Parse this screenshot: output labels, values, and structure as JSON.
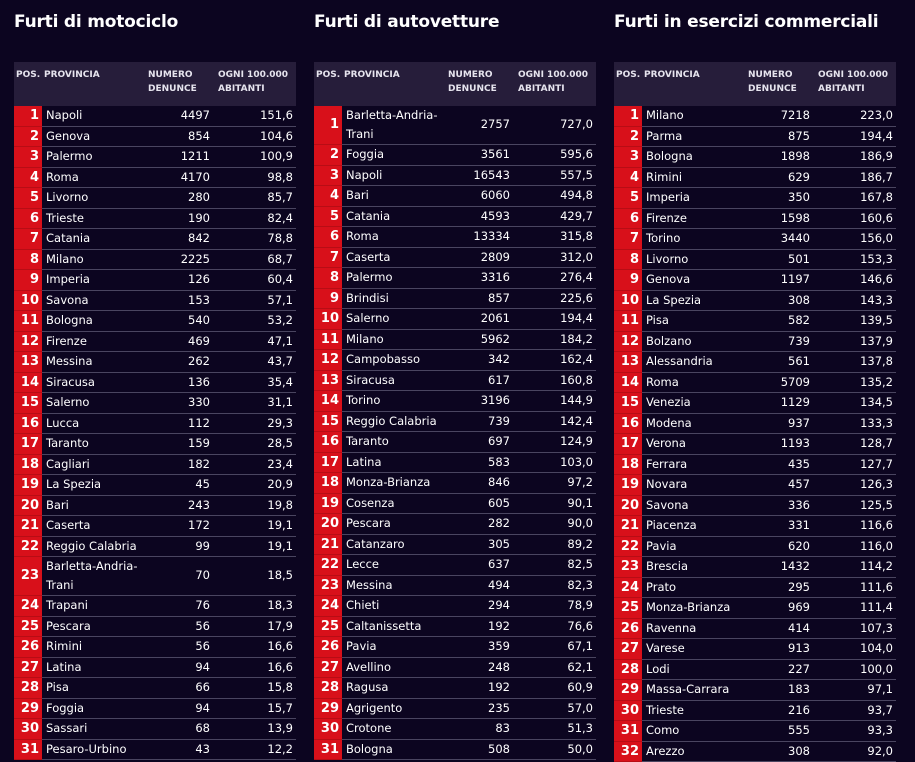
{
  "headers": {
    "pos": "POS.",
    "provincia": "PROVINCIA",
    "numero": "NUMERO DENUNCE",
    "ogni": "OGNI 100.000 ABITANTI"
  },
  "tables": [
    {
      "title": "Furti di motociclo",
      "rows": [
        [
          "1",
          "Napoli",
          "4497",
          "151,6"
        ],
        [
          "2",
          "Genova",
          "854",
          "104,6"
        ],
        [
          "3",
          "Palermo",
          "1211",
          "100,9"
        ],
        [
          "4",
          "Roma",
          "4170",
          "98,8"
        ],
        [
          "5",
          "Livorno",
          "280",
          "85,7"
        ],
        [
          "6",
          "Trieste",
          "190",
          "82,4"
        ],
        [
          "7",
          "Catania",
          "842",
          "78,8"
        ],
        [
          "8",
          "Milano",
          "2225",
          "68,7"
        ],
        [
          "9",
          "Imperia",
          "126",
          "60,4"
        ],
        [
          "10",
          "Savona",
          "153",
          "57,1"
        ],
        [
          "11",
          "Bologna",
          "540",
          "53,2"
        ],
        [
          "12",
          "Firenze",
          "469",
          "47,1"
        ],
        [
          "13",
          "Messina",
          "262",
          "43,7"
        ],
        [
          "14",
          "Siracusa",
          "136",
          "35,4"
        ],
        [
          "15",
          "Salerno",
          "330",
          "31,1"
        ],
        [
          "16",
          "Lucca",
          "112",
          "29,3"
        ],
        [
          "17",
          "Taranto",
          "159",
          "28,5"
        ],
        [
          "18",
          "Cagliari",
          "182",
          "23,4"
        ],
        [
          "19",
          "La Spezia",
          "45",
          "20,9"
        ],
        [
          "20",
          "Bari",
          "243",
          "19,8"
        ],
        [
          "21",
          "Caserta",
          "172",
          "19,1"
        ],
        [
          "22",
          "Reggio Calabria",
          "99",
          "19,1"
        ],
        [
          "23",
          "Barletta-Andria-Trani",
          "70",
          "18,5"
        ],
        [
          "24",
          "Trapani",
          "76",
          "18,3"
        ],
        [
          "25",
          "Pescara",
          "56",
          "17,9"
        ],
        [
          "26",
          "Rimini",
          "56",
          "16,6"
        ],
        [
          "27",
          "Latina",
          "94",
          "16,6"
        ],
        [
          "28",
          "Pisa",
          "66",
          "15,8"
        ],
        [
          "29",
          "Foggia",
          "94",
          "15,7"
        ],
        [
          "30",
          "Sassari",
          "68",
          "13,9"
        ],
        [
          "31",
          "Pesaro-Urbino",
          "43",
          "12,2"
        ]
      ]
    },
    {
      "title": "Furti di autovetture",
      "rows": [
        [
          "1",
          "Barletta-Andria-Trani",
          "2757",
          "727,0"
        ],
        [
          "2",
          "Foggia",
          "3561",
          "595,6"
        ],
        [
          "3",
          "Napoli",
          "16543",
          "557,5"
        ],
        [
          "4",
          "Bari",
          "6060",
          "494,8"
        ],
        [
          "5",
          "Catania",
          "4593",
          "429,7"
        ],
        [
          "6",
          "Roma",
          "13334",
          "315,8"
        ],
        [
          "7",
          "Caserta",
          "2809",
          "312,0"
        ],
        [
          "8",
          "Palermo",
          "3316",
          "276,4"
        ],
        [
          "9",
          "Brindisi",
          "857",
          "225,6"
        ],
        [
          "10",
          "Salerno",
          "2061",
          "194,4"
        ],
        [
          "11",
          "Milano",
          "5962",
          "184,2"
        ],
        [
          "12",
          "Campobasso",
          "342",
          "162,4"
        ],
        [
          "13",
          "Siracusa",
          "617",
          "160,8"
        ],
        [
          "14",
          "Torino",
          "3196",
          "144,9"
        ],
        [
          "15",
          "Reggio Calabria",
          "739",
          "142,4"
        ],
        [
          "16",
          "Taranto",
          "697",
          "124,9"
        ],
        [
          "17",
          "Latina",
          "583",
          "103,0"
        ],
        [
          "18",
          "Monza-Brianza",
          "846",
          "97,2"
        ],
        [
          "19",
          "Cosenza",
          "605",
          "90,1"
        ],
        [
          "20",
          "Pescara",
          "282",
          "90,0"
        ],
        [
          "21",
          "Catanzaro",
          "305",
          "89,2"
        ],
        [
          "22",
          "Lecce",
          "637",
          "82,5"
        ],
        [
          "23",
          "Messina",
          "494",
          "82,3"
        ],
        [
          "24",
          "Chieti",
          "294",
          "78,9"
        ],
        [
          "25",
          "Caltanissetta",
          "192",
          "76,6"
        ],
        [
          "26",
          "Pavia",
          "359",
          "67,1"
        ],
        [
          "27",
          "Avellino",
          "248",
          "62,1"
        ],
        [
          "28",
          "Ragusa",
          "192",
          "60,9"
        ],
        [
          "29",
          "Agrigento",
          "235",
          "57,0"
        ],
        [
          "30",
          "Crotone",
          "83",
          "51,3"
        ],
        [
          "31",
          "Bologna",
          "508",
          "50,0"
        ]
      ]
    },
    {
      "title": "Furti in esercizi commerciali",
      "rows": [
        [
          "1",
          "Milano",
          "7218",
          "223,0"
        ],
        [
          "2",
          "Parma",
          "875",
          "194,4"
        ],
        [
          "3",
          "Bologna",
          "1898",
          "186,9"
        ],
        [
          "4",
          "Rimini",
          "629",
          "186,7"
        ],
        [
          "5",
          "Imperia",
          "350",
          "167,8"
        ],
        [
          "6",
          "Firenze",
          "1598",
          "160,6"
        ],
        [
          "7",
          "Torino",
          "3440",
          "156,0"
        ],
        [
          "8",
          "Livorno",
          "501",
          "153,3"
        ],
        [
          "9",
          "Genova",
          "1197",
          "146,6"
        ],
        [
          "10",
          "La Spezia",
          "308",
          "143,3"
        ],
        [
          "11",
          "Pisa",
          "582",
          "139,5"
        ],
        [
          "12",
          "Bolzano",
          "739",
          "137,9"
        ],
        [
          "13",
          "Alessandria",
          "561",
          "137,8"
        ],
        [
          "14",
          "Roma",
          "5709",
          "135,2"
        ],
        [
          "15",
          "Venezia",
          "1129",
          "134,5"
        ],
        [
          "16",
          "Modena",
          "937",
          "133,3"
        ],
        [
          "17",
          "Verona",
          "1193",
          "128,7"
        ],
        [
          "18",
          "Ferrara",
          "435",
          "127,7"
        ],
        [
          "19",
          "Novara",
          "457",
          "126,3"
        ],
        [
          "20",
          "Savona",
          "336",
          "125,5"
        ],
        [
          "21",
          "Piacenza",
          "331",
          "116,6"
        ],
        [
          "22",
          "Pavia",
          "620",
          "116,0"
        ],
        [
          "23",
          "Brescia",
          "1432",
          "114,2"
        ],
        [
          "24",
          "Prato",
          "295",
          "111,6"
        ],
        [
          "25",
          "Monza-Brianza",
          "969",
          "111,4"
        ],
        [
          "26",
          "Ravenna",
          "414",
          "107,3"
        ],
        [
          "27",
          "Varese",
          "913",
          "104,0"
        ],
        [
          "28",
          "Lodi",
          "227",
          "100,0"
        ],
        [
          "29",
          "Massa-Carrara",
          "183",
          "97,1"
        ],
        [
          "30",
          "Trieste",
          "216",
          "93,7"
        ],
        [
          "31",
          "Como",
          "555",
          "93,3"
        ],
        [
          "32",
          "Arezzo",
          "308",
          "92,0"
        ]
      ]
    }
  ]
}
